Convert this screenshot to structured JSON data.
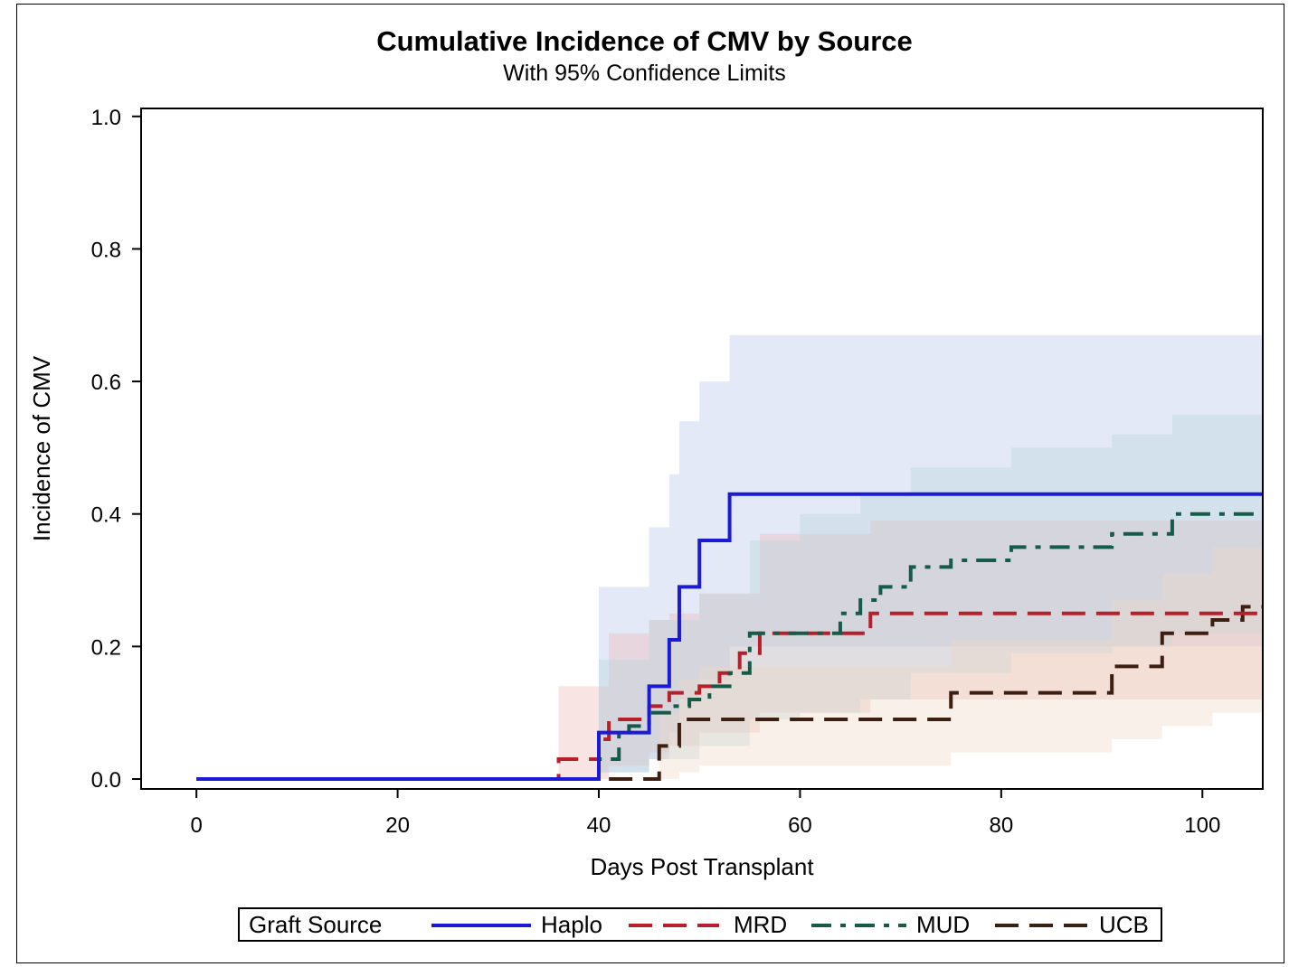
{
  "chart_data": {
    "type": "line",
    "title": "Cumulative Incidence of CMV by Source",
    "subtitle": "With 95% Confidence Limits",
    "xlabel": "Days Post Transplant",
    "ylabel": "Incidence of CMV",
    "xlim": [
      -5.5,
      106
    ],
    "ylim": [
      -0.015,
      1.012
    ],
    "xticks": [
      0,
      20,
      40,
      60,
      80,
      100
    ],
    "yticks": [
      "0.0",
      "0.2",
      "0.4",
      "0.6",
      "0.8",
      "1.0"
    ],
    "grid": false,
    "legend_position": "bottom",
    "legend": {
      "title": "Graft Source"
    },
    "series": [
      {
        "name": "Haplo",
        "color": "#1b1bd6",
        "dash": "solid",
        "band_color": "#b8c6ea",
        "x": [
          0,
          40,
          41,
          45,
          47,
          48,
          50,
          53,
          106
        ],
        "y": [
          0,
          0.07,
          0.07,
          0.14,
          0.21,
          0.29,
          0.36,
          0.43,
          0.43
        ],
        "ci_x": [
          40,
          45,
          47,
          48,
          50,
          53,
          106
        ],
        "ci_lower": [
          0.01,
          0.03,
          0.07,
          0.12,
          0.15,
          0.2,
          0.2
        ],
        "ci_upper": [
          0.29,
          0.38,
          0.46,
          0.54,
          0.6,
          0.67,
          0.67
        ]
      },
      {
        "name": "MRD",
        "color": "#b5202a",
        "dash": "long-dash",
        "band_color": "#ecb8b2",
        "x": [
          0,
          36,
          40,
          41,
          45,
          47,
          50,
          52,
          54,
          56,
          62,
          67,
          106
        ],
        "y": [
          0,
          0.03,
          0.06,
          0.09,
          0.11,
          0.13,
          0.14,
          0.16,
          0.19,
          0.22,
          0.22,
          0.25,
          0.25
        ],
        "ci_x": [
          36,
          41,
          45,
          47,
          50,
          56,
          67,
          106
        ],
        "ci_lower": [
          0.0,
          0.02,
          0.04,
          0.05,
          0.07,
          0.1,
          0.12,
          0.12
        ],
        "ci_upper": [
          0.14,
          0.22,
          0.24,
          0.25,
          0.28,
          0.37,
          0.39,
          0.41
        ]
      },
      {
        "name": "MUD",
        "color": "#165a4a",
        "dash": "dash-dot",
        "band_color": "#b7d6dc",
        "x": [
          0,
          40,
          42,
          43,
          45,
          47,
          49,
          51,
          53,
          55,
          60,
          64,
          66,
          68,
          71,
          75,
          81,
          91,
          97,
          106
        ],
        "y": [
          0,
          0.03,
          0.07,
          0.08,
          0.1,
          0.11,
          0.12,
          0.14,
          0.16,
          0.22,
          0.22,
          0.25,
          0.27,
          0.29,
          0.32,
          0.33,
          0.35,
          0.37,
          0.4,
          0.4
        ],
        "ci_x": [
          40,
          45,
          50,
          55,
          60,
          66,
          71,
          81,
          91,
          97,
          106
        ],
        "ci_lower": [
          0.01,
          0.03,
          0.05,
          0.09,
          0.1,
          0.12,
          0.16,
          0.19,
          0.2,
          0.22,
          0.22
        ],
        "ci_upper": [
          0.18,
          0.24,
          0.28,
          0.36,
          0.4,
          0.43,
          0.47,
          0.5,
          0.52,
          0.55,
          0.55
        ]
      },
      {
        "name": "UCB",
        "color": "#3d1f12",
        "dash": "long-dash",
        "band_color": "#ecd8c6",
        "x": [
          0,
          44,
          46,
          47,
          48,
          50,
          75,
          91,
          96,
          101,
          104,
          106
        ],
        "y": [
          0,
          0,
          0.05,
          0.05,
          0.09,
          0.09,
          0.13,
          0.17,
          0.22,
          0.24,
          0.26,
          0.26
        ],
        "ci_x": [
          46,
          48,
          50,
          75,
          91,
          96,
          101,
          106
        ],
        "ci_lower": [
          0.0,
          0.01,
          0.02,
          0.04,
          0.06,
          0.08,
          0.1,
          0.1
        ],
        "ci_upper": [
          0.1,
          0.15,
          0.17,
          0.21,
          0.27,
          0.31,
          0.35,
          0.35
        ]
      }
    ]
  }
}
